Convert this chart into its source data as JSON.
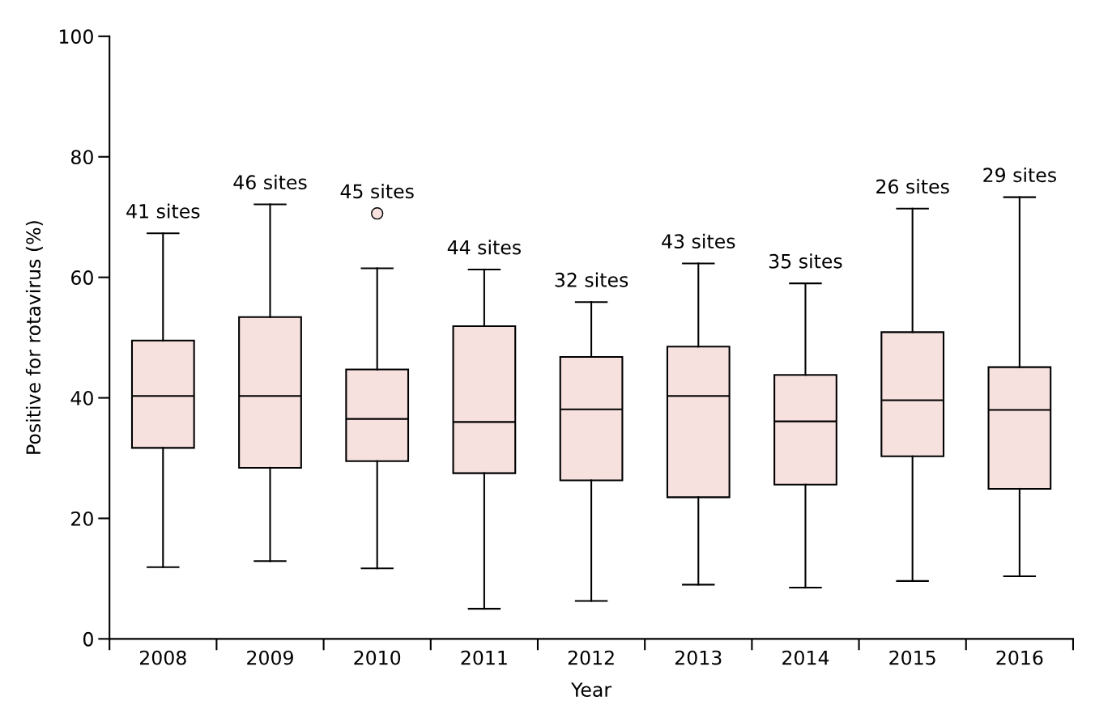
{
  "chart_data": {
    "type": "box",
    "xlabel": "Year",
    "ylabel": "Positive for rotavirus (%)",
    "categories": [
      "2008",
      "2009",
      "2010",
      "2011",
      "2012",
      "2013",
      "2014",
      "2015",
      "2016"
    ],
    "ylim": [
      0,
      100
    ],
    "yticks": [
      0,
      20,
      40,
      60,
      80,
      100
    ],
    "grid": false,
    "legend": false,
    "series": [
      {
        "color": "#f6e1df",
        "boxes": [
          {
            "low": 11.9,
            "q1": 31.7,
            "median": 40.3,
            "q3": 49.5,
            "high": 67.3
          },
          {
            "low": 12.9,
            "q1": 28.4,
            "median": 40.3,
            "q3": 53.4,
            "high": 72.1
          },
          {
            "low": 11.7,
            "q1": 29.5,
            "median": 36.5,
            "q3": 44.7,
            "high": 61.5,
            "outliers": [
              70.6
            ]
          },
          {
            "low": 5.0,
            "q1": 27.5,
            "median": 36.0,
            "q3": 51.9,
            "high": 61.3
          },
          {
            "low": 6.3,
            "q1": 26.3,
            "median": 38.1,
            "q3": 46.8,
            "high": 55.9
          },
          {
            "low": 9.0,
            "q1": 23.5,
            "median": 40.3,
            "q3": 48.5,
            "high": 62.3
          },
          {
            "low": 8.5,
            "q1": 25.6,
            "median": 36.1,
            "q3": 43.8,
            "high": 59.0
          },
          {
            "low": 9.6,
            "q1": 30.3,
            "median": 39.6,
            "q3": 50.9,
            "high": 71.4
          },
          {
            "low": 10.4,
            "q1": 24.9,
            "median": 38.0,
            "q3": 45.1,
            "high": 73.3
          }
        ]
      }
    ],
    "annotations": [
      "41 sites",
      "46 sites",
      "45 sites",
      "44 sites",
      "32 sites",
      "43 sites",
      "35 sites",
      "26 sites",
      "29 sites"
    ]
  }
}
